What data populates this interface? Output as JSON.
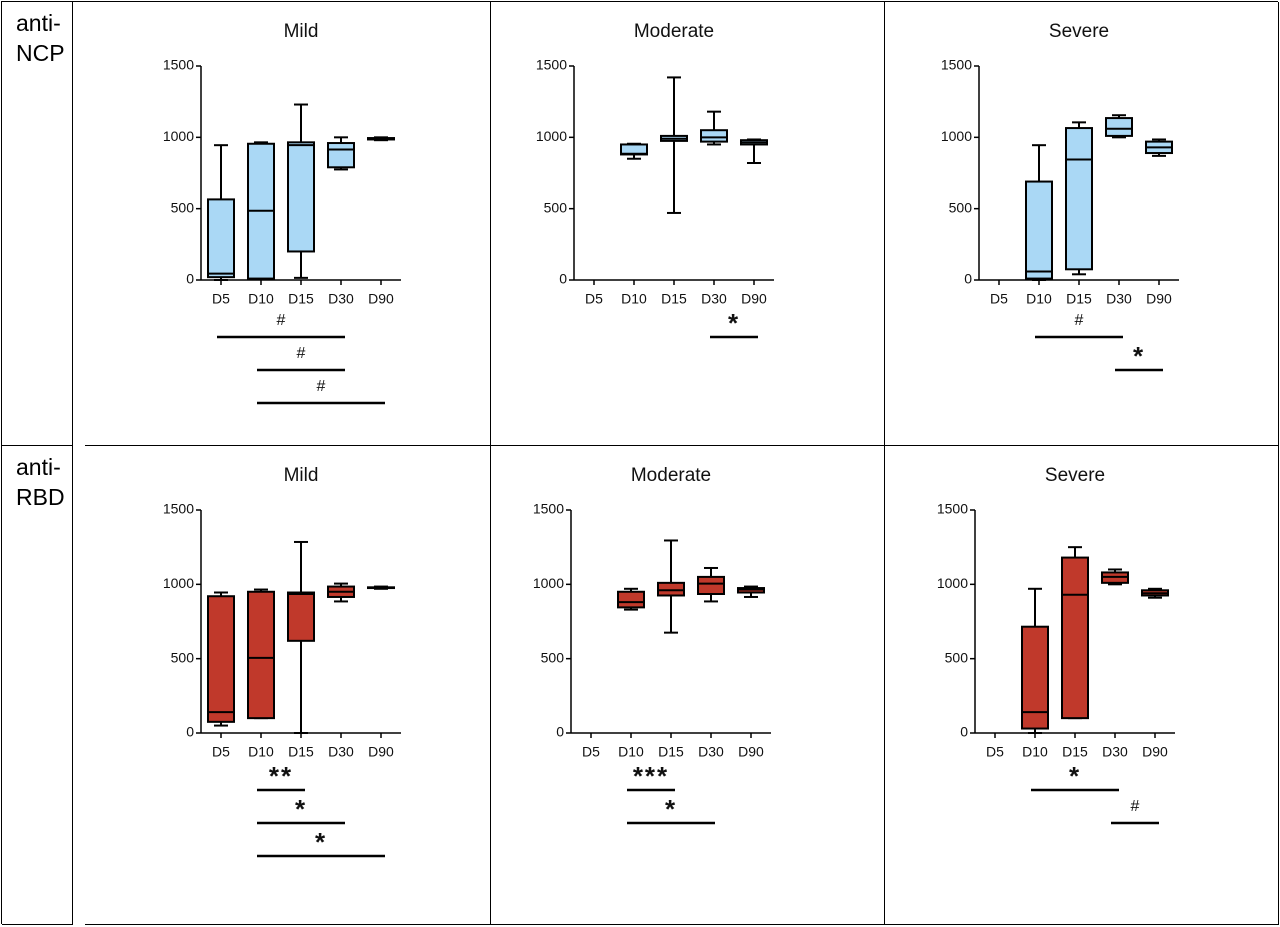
{
  "rows": [
    {
      "label": "anti-NCP"
    },
    {
      "label": "anti-RBD"
    }
  ],
  "chart_data": [
    {
      "type": "box",
      "title": "Mild",
      "color": "#aad8f5",
      "ylim": [
        0,
        1500
      ],
      "yticks": [
        0,
        500,
        1000,
        1500
      ],
      "categories": [
        "D5",
        "D10",
        "D15",
        "D30",
        "D90"
      ],
      "boxes": [
        {
          "min": 0,
          "q1": 20,
          "median": 45,
          "q3": 565,
          "max": 945
        },
        {
          "min": 5,
          "q1": 10,
          "median": 485,
          "q3": 955,
          "max": 965
        },
        {
          "min": 15,
          "q1": 200,
          "median": 945,
          "q3": 965,
          "max": 1230
        },
        {
          "min": 775,
          "q1": 790,
          "median": 915,
          "q3": 960,
          "max": 1000
        },
        {
          "min": 980,
          "q1": 985,
          "median": 990,
          "q3": 995,
          "max": 1000
        }
      ],
      "annotations": [
        {
          "label": "#",
          "from": "D5",
          "to": "D30"
        },
        {
          "label": "#",
          "from": "D10",
          "to": "D30"
        },
        {
          "label": "#",
          "from": "D10",
          "to": "D90"
        }
      ]
    },
    {
      "type": "box",
      "title": "Moderate",
      "color": "#aad8f5",
      "ylim": [
        0,
        1500
      ],
      "yticks": [
        0,
        500,
        1000,
        1500
      ],
      "categories": [
        "D5",
        "D10",
        "D15",
        "D30",
        "D90"
      ],
      "boxes": [
        null,
        {
          "min": 850,
          "q1": 880,
          "median": 885,
          "q3": 950,
          "max": 955
        },
        {
          "min": 470,
          "q1": 975,
          "median": 990,
          "q3": 1010,
          "max": 1420
        },
        {
          "min": 950,
          "q1": 970,
          "median": 1000,
          "q3": 1050,
          "max": 1180
        },
        {
          "min": 820,
          "q1": 950,
          "median": 965,
          "q3": 980,
          "max": 985
        }
      ],
      "annotations": [
        {
          "label": "*",
          "from": "D30",
          "to": "D90"
        }
      ]
    },
    {
      "type": "box",
      "title": "Severe",
      "color": "#aad8f5",
      "ylim": [
        0,
        1500
      ],
      "yticks": [
        0,
        500,
        1000,
        1500
      ],
      "categories": [
        "D5",
        "D10",
        "D15",
        "D30",
        "D90"
      ],
      "boxes": [
        null,
        {
          "min": 0,
          "q1": 10,
          "median": 60,
          "q3": 690,
          "max": 945
        },
        {
          "min": 40,
          "q1": 75,
          "median": 845,
          "q3": 1065,
          "max": 1105
        },
        {
          "min": 1000,
          "q1": 1010,
          "median": 1060,
          "q3": 1135,
          "max": 1155
        },
        {
          "min": 870,
          "q1": 890,
          "median": 930,
          "q3": 970,
          "max": 985
        }
      ],
      "annotations": [
        {
          "label": "#",
          "from": "D10",
          "to": "D30"
        },
        {
          "label": "*",
          "from": "D30",
          "to": "D90"
        }
      ]
    },
    {
      "type": "box",
      "title": "Mild",
      "color": "#c0392b",
      "ylim": [
        0,
        1500
      ],
      "yticks": [
        0,
        500,
        1000,
        1500
      ],
      "categories": [
        "D5",
        "D10",
        "D15",
        "D30",
        "D90"
      ],
      "boxes": [
        {
          "min": 50,
          "q1": 75,
          "median": 140,
          "q3": 920,
          "max": 945
        },
        {
          "min": 100,
          "q1": 100,
          "median": 505,
          "q3": 950,
          "max": 965
        },
        {
          "min": 0,
          "q1": 620,
          "median": 935,
          "q3": 945,
          "max": 1285
        },
        {
          "min": 885,
          "q1": 915,
          "median": 950,
          "q3": 985,
          "max": 1005
        },
        {
          "min": 970,
          "q1": 975,
          "median": 975,
          "q3": 980,
          "max": 985
        }
      ],
      "annotations": [
        {
          "label": "**",
          "from": "D10",
          "to": "D15"
        },
        {
          "label": "*",
          "from": "D10",
          "to": "D30"
        },
        {
          "label": "*",
          "from": "D10",
          "to": "D90"
        }
      ]
    },
    {
      "type": "box",
      "title": "Moderate",
      "color": "#c0392b",
      "ylim": [
        0,
        1500
      ],
      "yticks": [
        0,
        500,
        1000,
        1500
      ],
      "categories": [
        "D5",
        "D10",
        "D15",
        "D30",
        "D90"
      ],
      "boxes": [
        null,
        {
          "min": 830,
          "q1": 845,
          "median": 880,
          "q3": 950,
          "max": 970
        },
        {
          "min": 675,
          "q1": 925,
          "median": 960,
          "q3": 1010,
          "max": 1295
        },
        {
          "min": 885,
          "q1": 935,
          "median": 1005,
          "q3": 1050,
          "max": 1110
        },
        {
          "min": 915,
          "q1": 945,
          "median": 965,
          "q3": 975,
          "max": 985
        }
      ],
      "annotations": [
        {
          "label": "***",
          "from": "D10",
          "to": "D15"
        },
        {
          "label": "*",
          "from": "D10",
          "to": "D30"
        }
      ]
    },
    {
      "type": "box",
      "title": "Severe",
      "color": "#c0392b",
      "ylim": [
        0,
        1500
      ],
      "yticks": [
        0,
        500,
        1000,
        1500
      ],
      "categories": [
        "D5",
        "D10",
        "D15",
        "D30",
        "D90"
      ],
      "boxes": [
        null,
        {
          "min": 0,
          "q1": 30,
          "median": 140,
          "q3": 715,
          "max": 970
        },
        {
          "min": 100,
          "q1": 100,
          "median": 930,
          "q3": 1180,
          "max": 1250
        },
        {
          "min": 1000,
          "q1": 1010,
          "median": 1050,
          "q3": 1080,
          "max": 1100
        },
        {
          "min": 910,
          "q1": 925,
          "median": 940,
          "q3": 960,
          "max": 970
        }
      ],
      "annotations": [
        {
          "label": "*",
          "from": "D10",
          "to": "D30"
        },
        {
          "label": "#",
          "from": "D30",
          "to": "D90"
        }
      ]
    }
  ]
}
